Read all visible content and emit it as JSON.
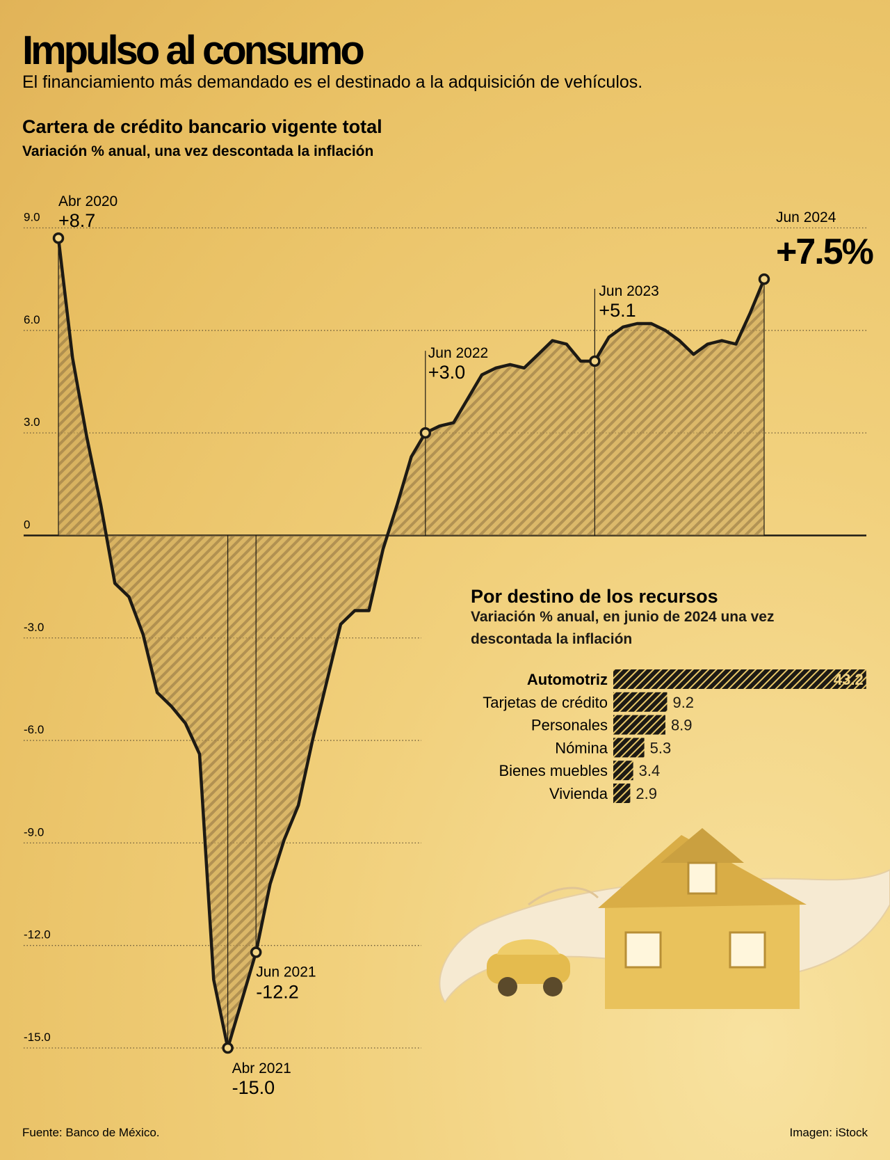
{
  "header": {
    "title": "Impulso al consumo",
    "subtitle": "El financiamiento más demandado es el destinado a la adquisición de vehículos."
  },
  "chart_data": [
    {
      "type": "line",
      "title": "Cartera de crédito bancario vigente total",
      "subtitle": "Variación % anual, una vez descontada la inflación",
      "categories": [
        "Abr 2020",
        null,
        null,
        null,
        null,
        null,
        null,
        null,
        null,
        null,
        null,
        null,
        "Abr 2021",
        null,
        "Jun 2021",
        null,
        null,
        null,
        null,
        null,
        null,
        null,
        null,
        null,
        null,
        null,
        "Jun 2022",
        null,
        null,
        null,
        null,
        null,
        null,
        null,
        null,
        null,
        null,
        null,
        "Jun 2023",
        null,
        null,
        null,
        null,
        null,
        null,
        null,
        null,
        null,
        null,
        null,
        "Jun 2024"
      ],
      "values": [
        8.7,
        5.2,
        2.9,
        0.9,
        -1.4,
        -1.8,
        -2.9,
        -4.6,
        -5.0,
        -5.5,
        -6.4,
        -13.0,
        -15.0,
        -13.6,
        -12.2,
        -10.2,
        -8.9,
        -7.9,
        -6.0,
        -4.3,
        -2.6,
        -2.2,
        -2.2,
        -0.4,
        0.9,
        2.3,
        3.0,
        3.2,
        3.3,
        4.0,
        4.7,
        4.9,
        5.0,
        4.9,
        5.3,
        5.7,
        5.6,
        5.1,
        5.1,
        5.8,
        6.1,
        6.2,
        6.2,
        6.0,
        5.7,
        5.3,
        5.6,
        5.7,
        5.6,
        6.5,
        7.5
      ],
      "value_labels": [
        "+8.7",
        null,
        null,
        null,
        null,
        null,
        null,
        null,
        null,
        null,
        null,
        null,
        "-15.0",
        null,
        "-12.2",
        null,
        null,
        null,
        null,
        null,
        null,
        null,
        null,
        null,
        null,
        null,
        "+3.0",
        null,
        null,
        null,
        null,
        null,
        null,
        null,
        null,
        null,
        null,
        null,
        "+5.1",
        null,
        null,
        null,
        null,
        null,
        null,
        null,
        null,
        null,
        null,
        null,
        "+7.5%"
      ],
      "color": "#1d1a14",
      "ylim": [
        -15,
        9
      ],
      "yticks": [
        {
          "value": 9,
          "label": "9.0"
        },
        {
          "value": 6,
          "label": "6.0"
        },
        {
          "value": 3,
          "label": "3.0"
        },
        0,
        {
          "value": -3,
          "label": "-3.0"
        },
        {
          "value": -6,
          "label": "-6.0"
        },
        {
          "value": -9,
          "label": "-9.0"
        },
        {
          "value": -12,
          "label": "-12.0"
        },
        {
          "value": -15,
          "label": "-15.0"
        }
      ],
      "grid": true
    },
    {
      "type": "barh",
      "title": "Por destino de los recursos",
      "subtitle": "Variación % anual, en junio de 2024 una vez descontada la inflación",
      "categories": [
        "Automotriz",
        "Tarjetas de crédito",
        "Personales",
        "Nómina",
        "Bienes muebles",
        "Vivienda"
      ],
      "values": [
        43.2,
        9.2,
        8.9,
        5.3,
        3.4,
        2.9
      ],
      "color": "#1d1a14"
    }
  ],
  "footer": {
    "source": "Fuente: Banco de México.",
    "credit": "Imagen: iStock"
  }
}
